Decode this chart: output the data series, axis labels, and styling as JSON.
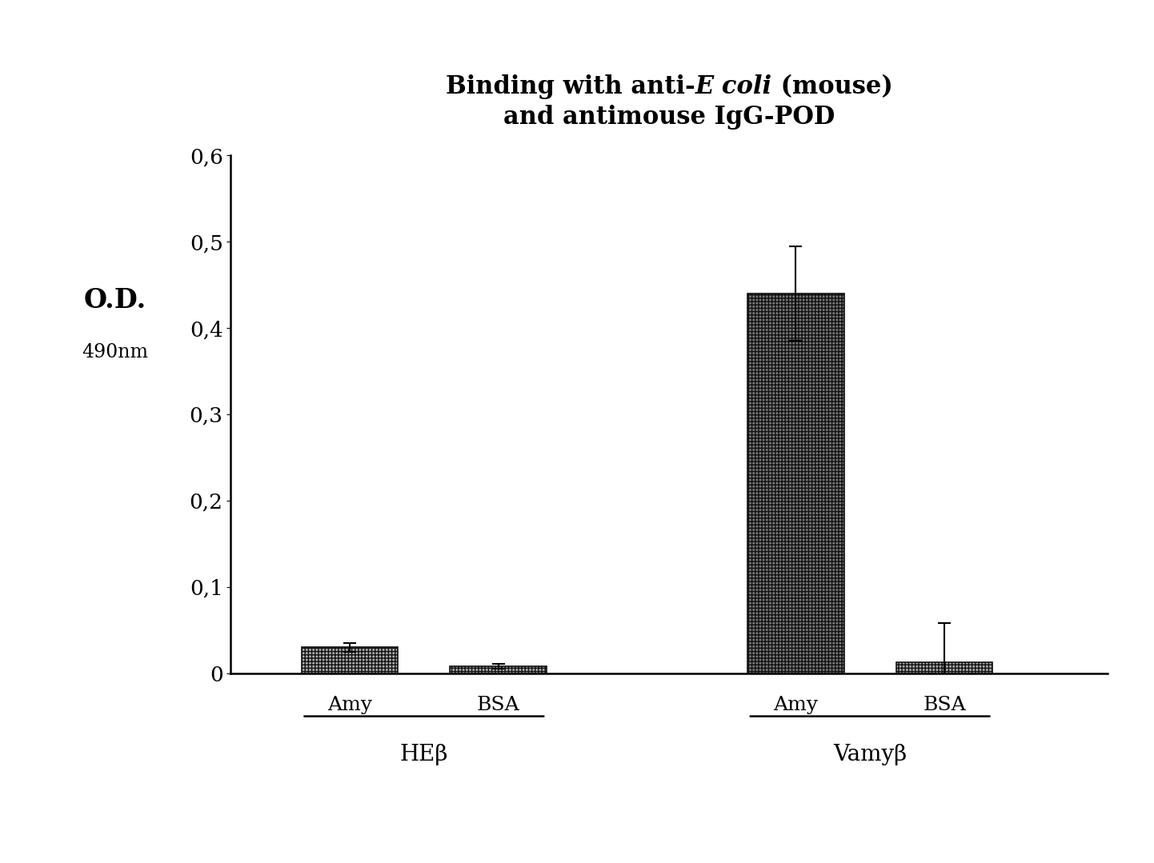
{
  "title_line1_normal": "Binding with anti-",
  "title_line1_italic": "E coli",
  "title_line1_end": " (mouse)",
  "title_line2": "and antimouse IgG-POD",
  "ylabel_main": "O.D.",
  "ylabel_sub": "490nm",
  "bar_labels": [
    "Amy",
    "BSA",
    "Amy",
    "BSA"
  ],
  "group_labels": [
    "HEβ",
    "Vamyβ"
  ],
  "bar_values": [
    0.03,
    0.008,
    0.44,
    0.013
  ],
  "bar_errors": [
    0.005,
    0.003,
    0.055,
    0.045
  ],
  "ylim": [
    0,
    0.6
  ],
  "yticks": [
    0,
    0.1,
    0.2,
    0.3,
    0.4,
    0.5,
    0.6
  ],
  "ytick_labels": [
    "0",
    "0,1",
    "0,2",
    "0,3",
    "0,4",
    "0,5",
    "0,6"
  ],
  "background_color": "#ffffff",
  "figsize": [
    14.42,
    10.79
  ],
  "dpi": 100
}
